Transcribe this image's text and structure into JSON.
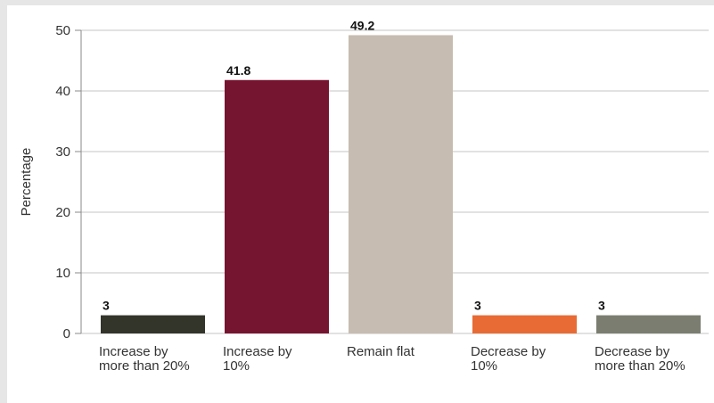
{
  "chart_data": {
    "type": "bar",
    "title": "",
    "xlabel": "",
    "ylabel": "Percentage",
    "ylim": [
      0,
      50
    ],
    "yticks": [
      0,
      10,
      20,
      30,
      40,
      50
    ],
    "grid": true,
    "categories": [
      [
        "Increase by",
        "more than 20%"
      ],
      [
        "Increase by",
        "10%"
      ],
      [
        "Remain flat"
      ],
      [
        "Decrease by",
        "10%"
      ],
      [
        "Decrease by",
        "more than 20%"
      ]
    ],
    "values": [
      3,
      41.8,
      49.2,
      3,
      3
    ],
    "value_labels": [
      "3",
      "41.8",
      "49.2",
      "3",
      "3"
    ],
    "colors": [
      "#33352b",
      "#761530",
      "#c7bcb1",
      "#e86b35",
      "#7a7d70"
    ]
  }
}
